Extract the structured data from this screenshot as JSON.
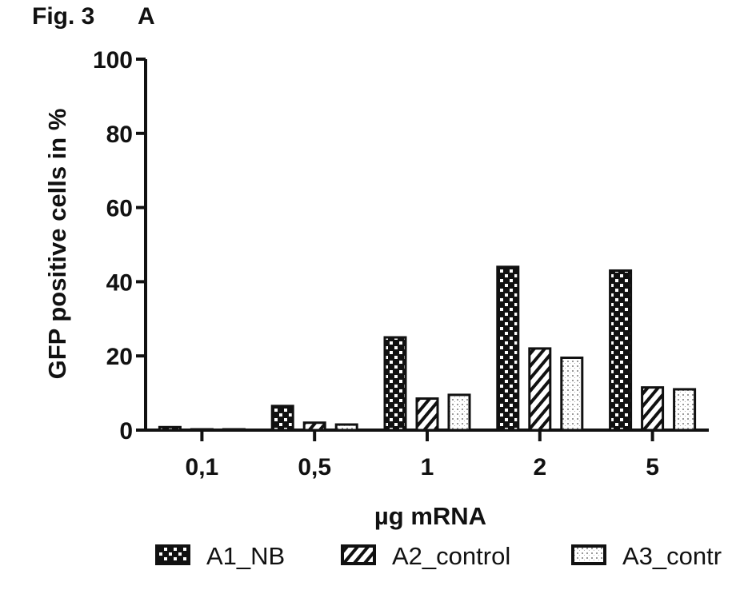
{
  "figure": {
    "label": "Fig. 3",
    "panel": "A"
  },
  "chart_data": {
    "type": "bar",
    "xlabel": "µg mRNA",
    "ylabel": "GFP positive cells in %",
    "ylim": [
      0,
      100
    ],
    "yticks": [
      0,
      20,
      40,
      60,
      80,
      100
    ],
    "categories": [
      "0,1",
      "0,5",
      "1",
      "2",
      "5"
    ],
    "series": [
      {
        "name": "A1_NB",
        "pattern": "checker",
        "values": [
          0.8,
          6.5,
          25,
          44,
          43
        ]
      },
      {
        "name": "A2_control",
        "pattern": "diagonal",
        "values": [
          0.2,
          2,
          8.5,
          22,
          11.5
        ]
      },
      {
        "name": "A3_contr",
        "pattern": "dotted",
        "values": [
          0.2,
          1.5,
          9.5,
          19.5,
          11
        ]
      }
    ],
    "legend_position": "bottom",
    "grid": false,
    "colors": {
      "ink": "#111111",
      "fill": "#ffffff"
    }
  }
}
